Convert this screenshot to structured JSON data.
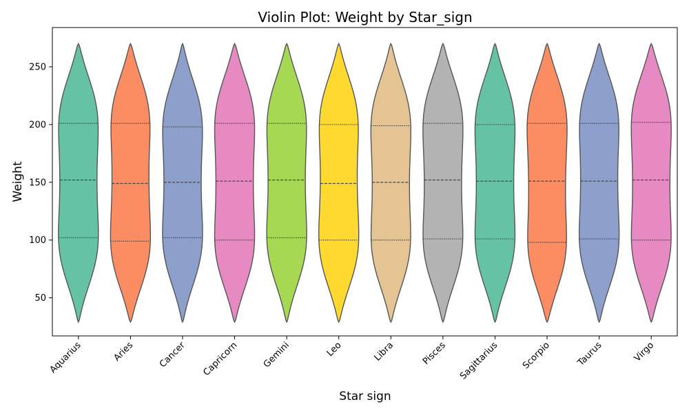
{
  "chart_data": {
    "type": "violin",
    "title": "Violin Plot: Weight by Star_sign",
    "xlabel": "Star sign",
    "ylabel": "Weight",
    "ylim": [
      17,
      284
    ],
    "yticks": [
      50,
      100,
      150,
      200,
      250
    ],
    "categories": [
      "Aquarius",
      "Aries",
      "Cancer",
      "Capricorn",
      "Gemini",
      "Leo",
      "Libra",
      "Pisces",
      "Sagittarius",
      "Scorpio",
      "Taurus",
      "Virgo"
    ],
    "colors": [
      "#66c2a5",
      "#fc8d62",
      "#8da0cb",
      "#e78ac3",
      "#a6d854",
      "#ffd92f",
      "#e5c494",
      "#b3b3b3",
      "#66c2a5",
      "#fc8d62",
      "#8da0cb",
      "#e78ac3"
    ],
    "range": [
      29,
      270
    ],
    "quartiles": [
      [
        102,
        152,
        201
      ],
      [
        99,
        149,
        201
      ],
      [
        102,
        150,
        198
      ],
      [
        100,
        151,
        201
      ],
      [
        102,
        152,
        201
      ],
      [
        100,
        149,
        200
      ],
      [
        100,
        150,
        199
      ],
      [
        101,
        152,
        201
      ],
      [
        101,
        151,
        200
      ],
      [
        98,
        151,
        201
      ],
      [
        101,
        151,
        201
      ],
      [
        100,
        152,
        202
      ]
    ],
    "grid": false,
    "legend": "none"
  }
}
